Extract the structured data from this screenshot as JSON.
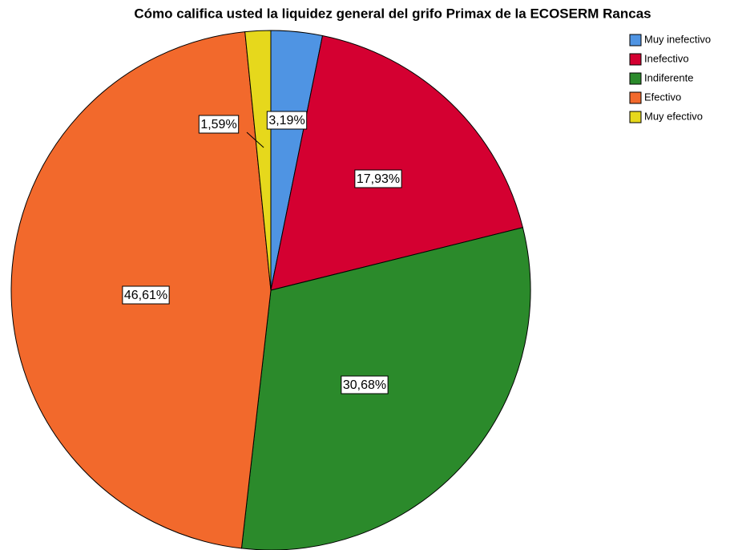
{
  "chart_data": {
    "type": "pie",
    "title": "Cómo califica usted la liquidez general del grifo Primax de la ECOSERM Rancas",
    "categories": [
      "Muy inefectivo",
      "Inefectivo",
      "Indiferente",
      "Efectivo",
      "Muy efectivo"
    ],
    "values": [
      3.19,
      17.93,
      30.68,
      46.61,
      1.59
    ],
    "value_labels": [
      "3,19%",
      "17,93%",
      "30,68%",
      "46,61%",
      "1,59%"
    ],
    "colors": [
      "#4f94e3",
      "#d40031",
      "#2b8a2b",
      "#f2692c",
      "#e6d81c"
    ],
    "legend": "right"
  }
}
